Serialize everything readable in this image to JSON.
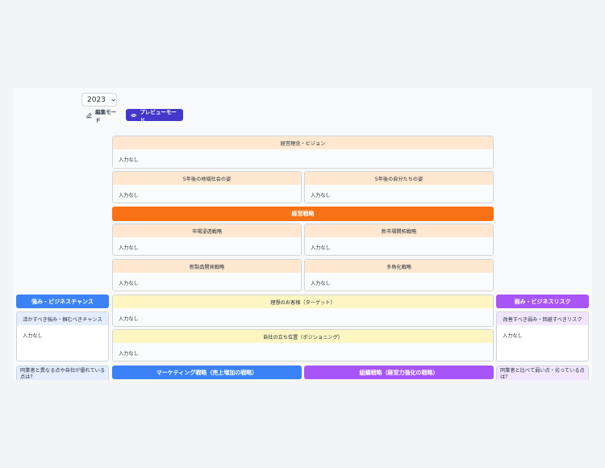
{
  "toolbar": {
    "year": "2023",
    "edit_mode": "編集モード",
    "preview_mode": "プレビューモード"
  },
  "empty": "入力なし",
  "philosophy": {
    "title": "経営理念・ビジョン"
  },
  "future": {
    "community": "5年後の地域社会の姿",
    "self": "5年後の自分たちの姿"
  },
  "strategy": {
    "title": "経営戦略",
    "market_penetration": "市場浸透戦略",
    "market_development": "新市場開拓戦略",
    "product_development": "新製品開発戦略",
    "diversification": "多角化戦略"
  },
  "customer": {
    "ideal": "理想のお客様（ターゲット）",
    "positioning": "自社の立ち位置（ポジショニング）"
  },
  "strengths": {
    "title": "強み・ビジネスチャンス",
    "sub": "活かすべき強み・掴むべきチャンス",
    "question": "同業者と異なる点や自社が優れている点は？"
  },
  "weaknesses": {
    "title": "弱み・ビジネスリスク",
    "sub": "改善すべき弱み・回避すべきリスク",
    "question": "同業者と比べて弱い点・劣っている点は？"
  },
  "marketing": {
    "title": "マーケティング戦略（売上増加の戦略）"
  },
  "organization": {
    "title": "組織戦略（経営力強化の戦略）"
  }
}
